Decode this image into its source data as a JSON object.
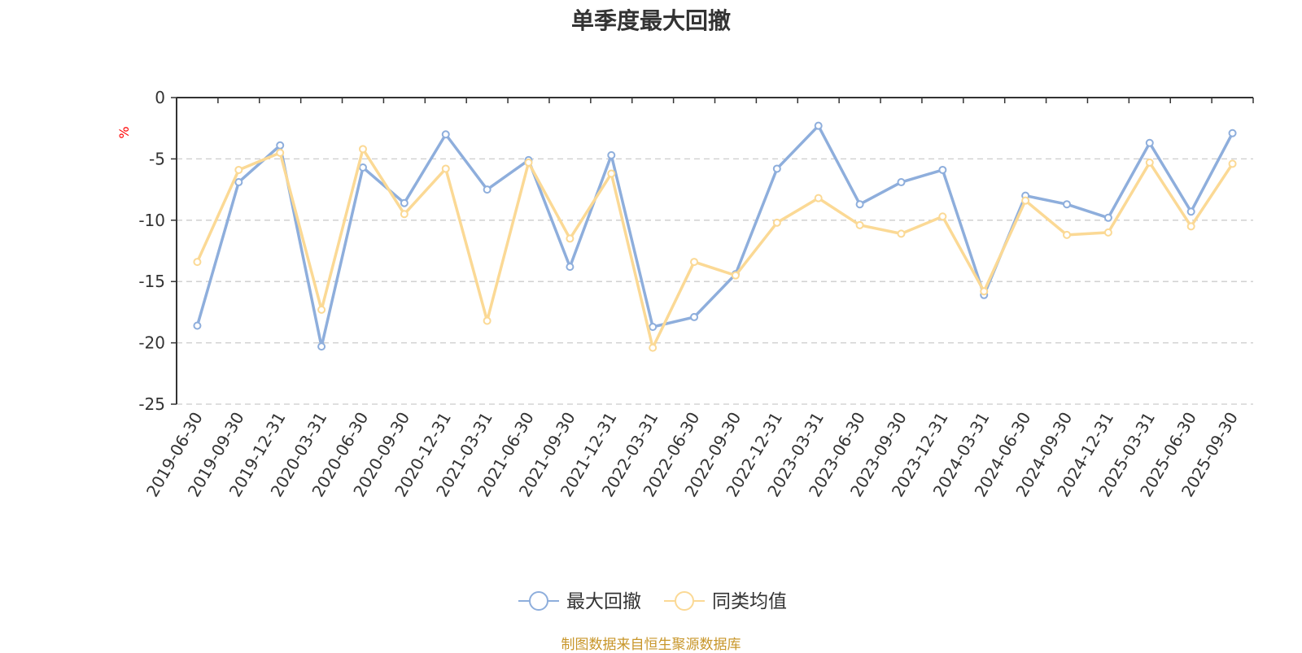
{
  "chart_data": {
    "type": "line",
    "title": "单季度最大回撤",
    "ylabel": "%",
    "ylim": [
      -25,
      0
    ],
    "yticks": [
      0,
      -5,
      -10,
      -15,
      -20,
      -25
    ],
    "grid": true,
    "legend_position": "bottom",
    "categories": [
      "2019-06-30",
      "2019-09-30",
      "2019-12-31",
      "2020-03-31",
      "2020-06-30",
      "2020-09-30",
      "2020-12-31",
      "2021-03-31",
      "2021-06-30",
      "2021-09-30",
      "2021-12-31",
      "2022-03-31",
      "2022-06-30",
      "2022-09-30",
      "2022-12-31",
      "2023-03-31",
      "2023-06-30",
      "2023-09-30",
      "2023-12-31",
      "2024-03-31",
      "2024-06-30",
      "2024-09-30",
      "2024-12-31",
      "2025-03-31",
      "2025-06-30",
      "2025-09-30"
    ],
    "series": [
      {
        "name": "最大回撤",
        "color": "#8eaedc",
        "values": [
          -18.6,
          -6.9,
          -3.9,
          -20.3,
          -5.7,
          -8.6,
          -3.0,
          -7.5,
          -5.1,
          -13.8,
          -4.7,
          -18.7,
          -17.9,
          -14.4,
          -5.8,
          -2.3,
          -8.7,
          -6.9,
          -5.9,
          -16.1,
          -8.0,
          -8.7,
          -9.8,
          -3.7,
          -9.3,
          -2.9
        ]
      },
      {
        "name": "同类均值",
        "color": "#fbd995",
        "values": [
          -13.4,
          -5.9,
          -4.5,
          -17.3,
          -4.2,
          -9.5,
          -5.8,
          -18.2,
          -5.3,
          -11.5,
          -6.2,
          -20.4,
          -13.4,
          -14.5,
          -10.2,
          -8.2,
          -10.4,
          -11.1,
          -9.7,
          -15.8,
          -8.4,
          -11.2,
          -11.0,
          -5.3,
          -10.5,
          -5.4
        ]
      }
    ]
  },
  "source_text": "制图数据来自恒生聚源数据库"
}
